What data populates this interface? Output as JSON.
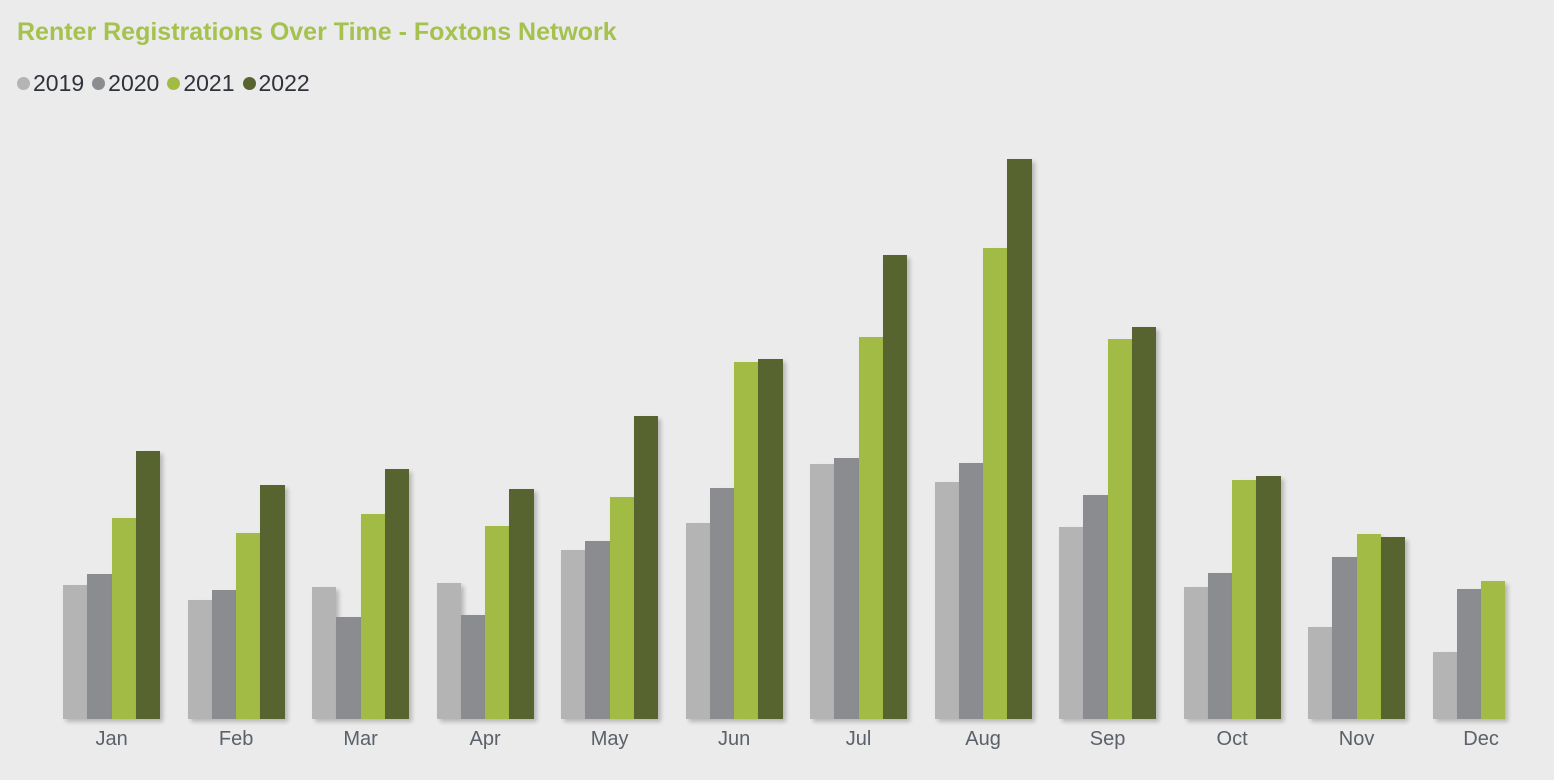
{
  "chart_data": {
    "type": "bar",
    "title": "Renter Registrations Over Time - Foxtons Network",
    "title_color": "#a4c24d",
    "background_color": "#ebebeb",
    "xlabel": "",
    "ylabel": "",
    "value_axis_visible": false,
    "grid": false,
    "legend_position": "top-left",
    "value_scale_note": "no value axis shown; unitless values scaled so tallest bar (Aug 2022) = 100",
    "ylim": [
      0,
      109
    ],
    "categories": [
      "Jan",
      "Feb",
      "Mar",
      "Apr",
      "May",
      "Jun",
      "Jul",
      "Aug",
      "Sep",
      "Oct",
      "Nov",
      "Dec"
    ],
    "series": [
      {
        "name": "2019",
        "color": "#b4b4b5",
        "values": [
          23.9,
          21.3,
          23.6,
          24.3,
          30.2,
          35.0,
          45.5,
          42.3,
          34.3,
          23.6,
          16.4,
          12.0
        ]
      },
      {
        "name": "2020",
        "color": "#8b8c90",
        "values": [
          25.9,
          23.0,
          18.2,
          18.6,
          31.8,
          41.3,
          46.6,
          45.7,
          40.0,
          26.1,
          28.9,
          23.2
        ]
      },
      {
        "name": "2021",
        "color": "#a2bb45",
        "values": [
          35.9,
          33.2,
          36.6,
          34.5,
          39.6,
          63.8,
          68.2,
          84.1,
          67.9,
          42.7,
          33.0,
          24.6
        ]
      },
      {
        "name": "2022",
        "color": "#57642f",
        "values": [
          47.9,
          41.8,
          44.6,
          41.1,
          54.1,
          64.3,
          82.9,
          100.0,
          70.0,
          43.4,
          32.5,
          null
        ]
      }
    ]
  }
}
